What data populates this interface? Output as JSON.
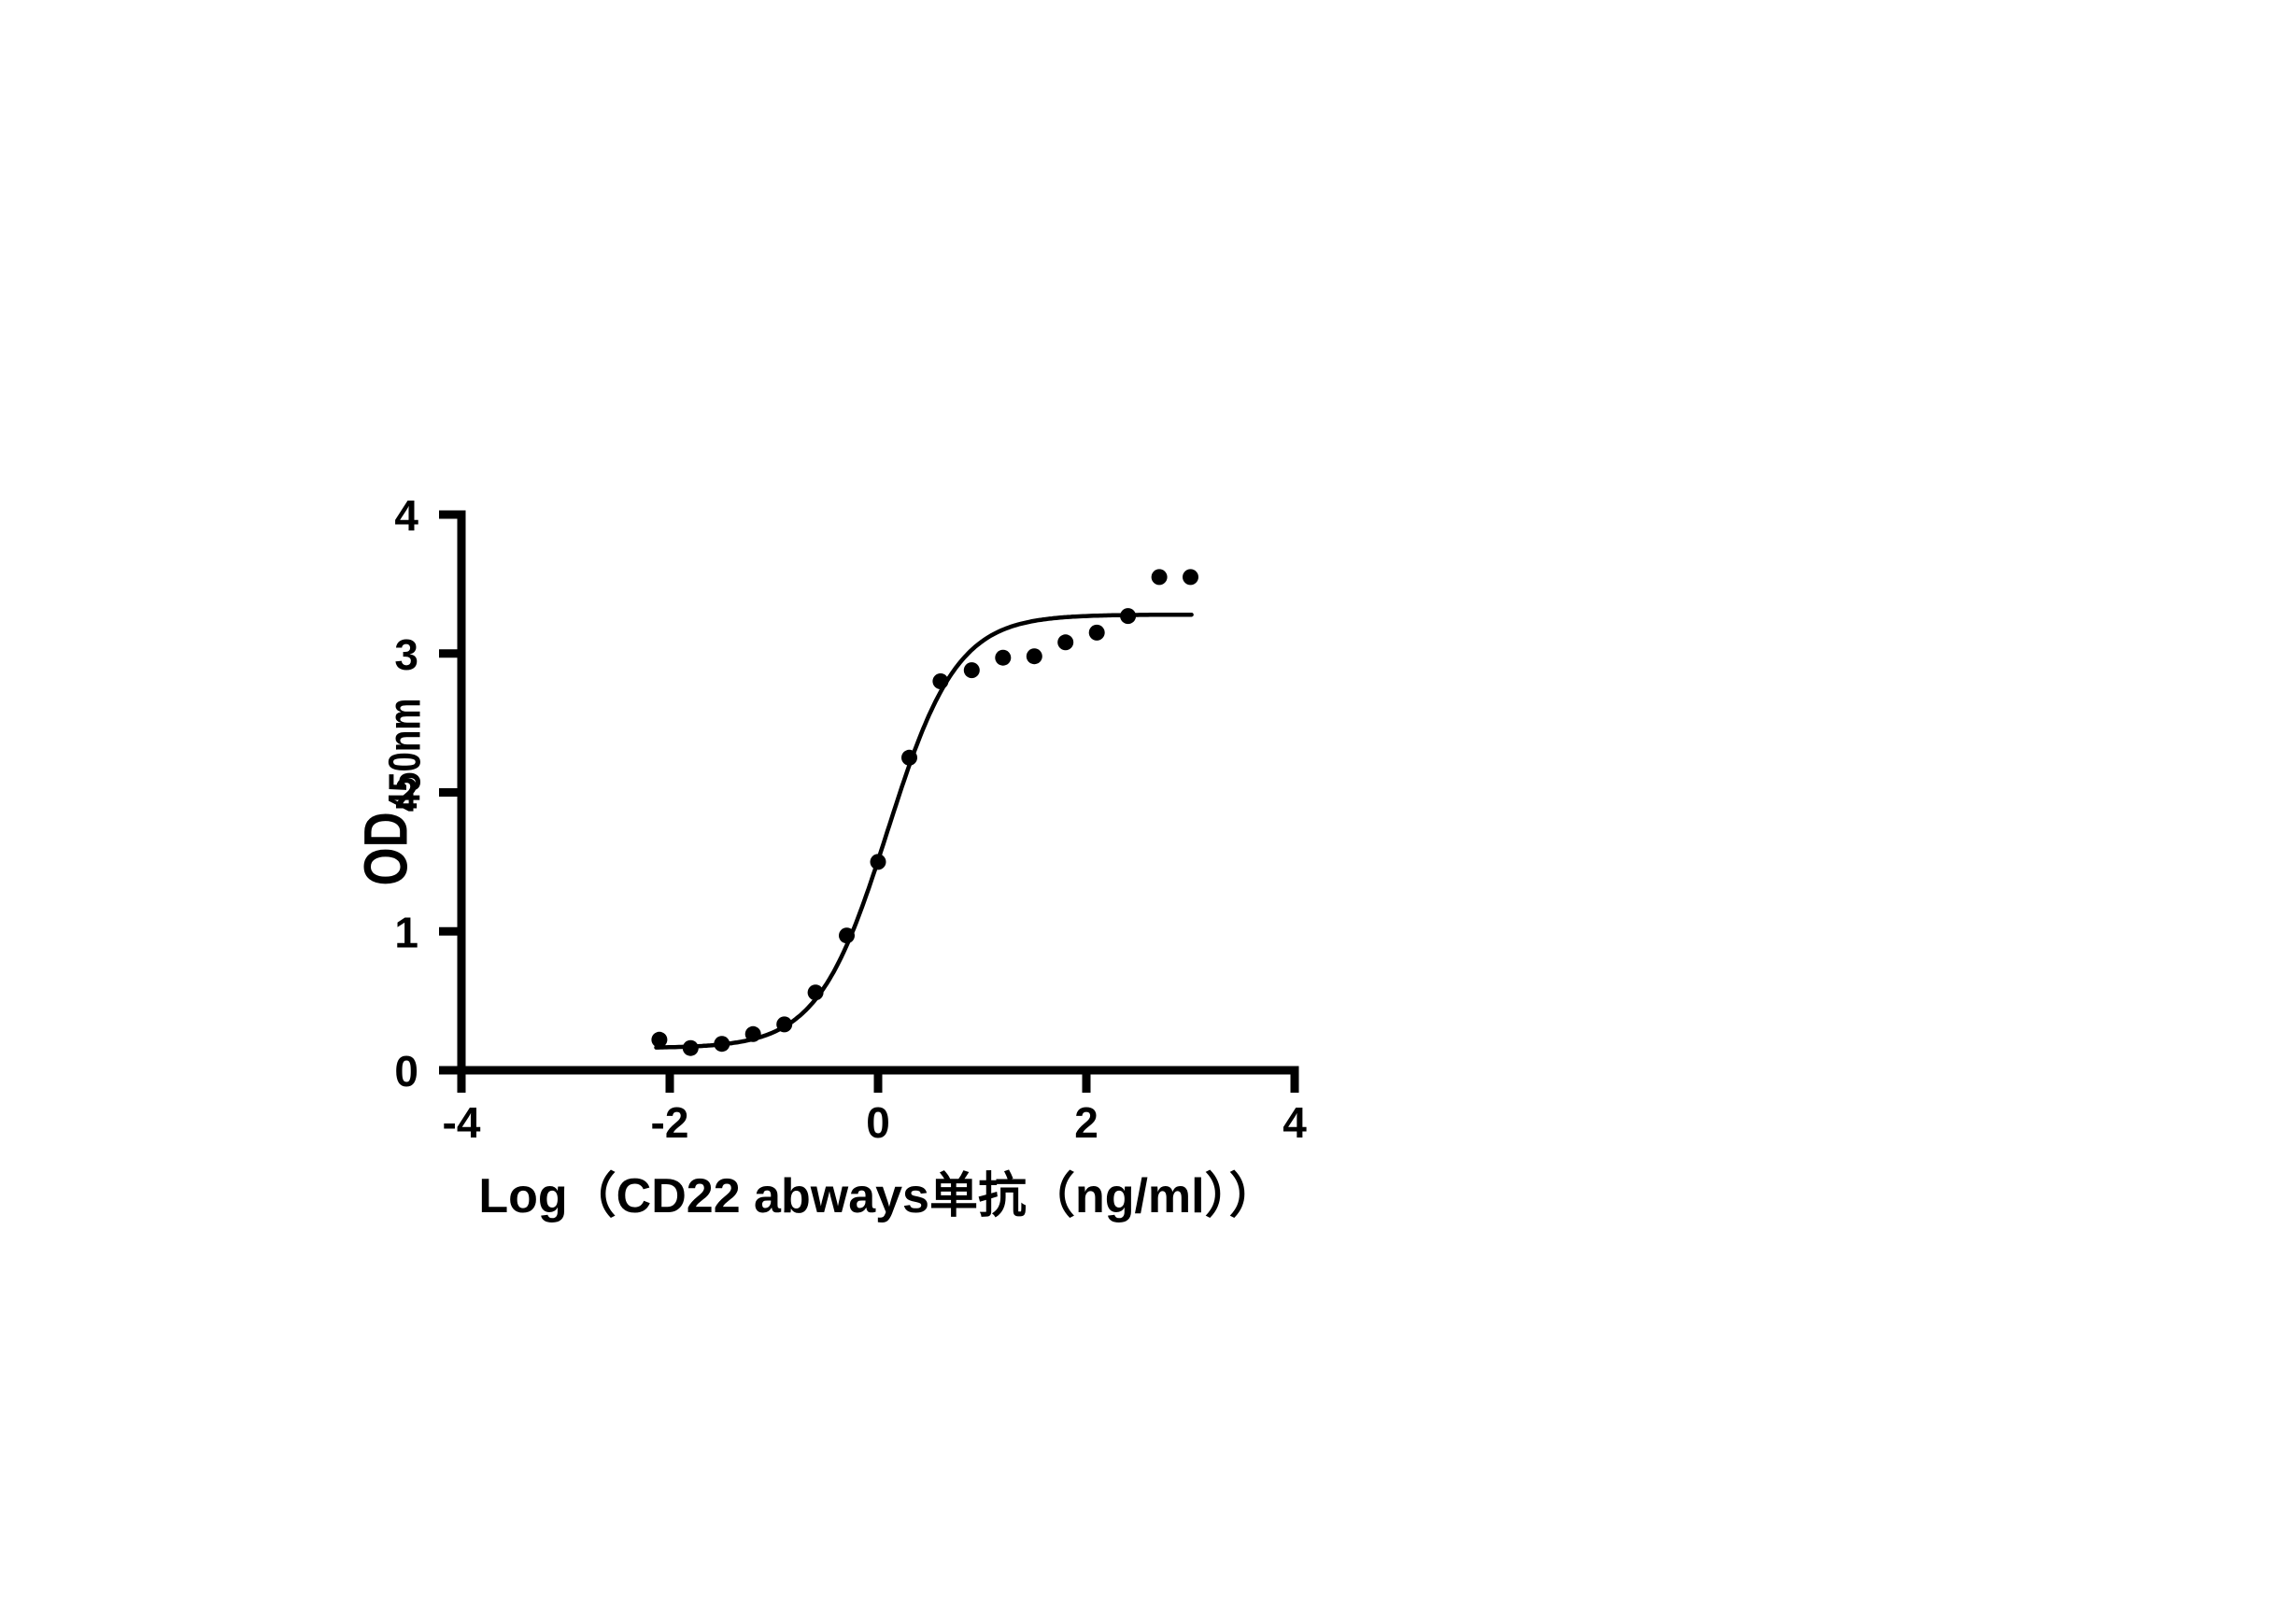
{
  "page": {
    "background": "#ffffff",
    "ink_color": "#000000"
  },
  "chart_data": {
    "type": "scatter",
    "title": "",
    "xlabel": "Log（CD22 abways单抗（ng/ml））",
    "ylabel_main": "OD",
    "ylabel_sub": "450nm",
    "xlim": [
      -4,
      4
    ],
    "ylim": [
      0,
      4
    ],
    "x_ticks": [
      "-4",
      "-2",
      "0",
      "2",
      "4"
    ],
    "y_ticks": [
      "0",
      "1",
      "2",
      "3",
      "4"
    ],
    "grid": false,
    "legend": null,
    "marker": {
      "shape": "filled-circle",
      "color": "#000000",
      "radius_px": 8.5
    },
    "series": [
      {
        "name": "OD450 vs log concentration",
        "points": [
          [
            -2.1,
            0.22
          ],
          [
            -1.8,
            0.16
          ],
          [
            -1.5,
            0.19
          ],
          [
            -1.2,
            0.26
          ],
          [
            -0.9,
            0.33
          ],
          [
            -0.6,
            0.56
          ],
          [
            -0.3,
            0.97
          ],
          [
            0.0,
            1.5
          ],
          [
            0.3,
            2.25
          ],
          [
            0.6,
            2.8
          ],
          [
            0.9,
            2.88
          ],
          [
            1.2,
            2.97
          ],
          [
            1.5,
            2.98
          ],
          [
            1.8,
            3.08
          ],
          [
            2.1,
            3.15
          ],
          [
            2.4,
            3.27
          ],
          [
            2.7,
            3.55
          ],
          [
            3.0,
            3.55
          ]
        ]
      }
    ],
    "fit_curve": {
      "model": "four-parameter-logistic",
      "bottom": 0.16,
      "top": 3.28,
      "log_ec50": 0.09,
      "hill_slope": 1.3,
      "x_start": -2.13,
      "x_end": 3.01,
      "color": "#000000"
    }
  }
}
